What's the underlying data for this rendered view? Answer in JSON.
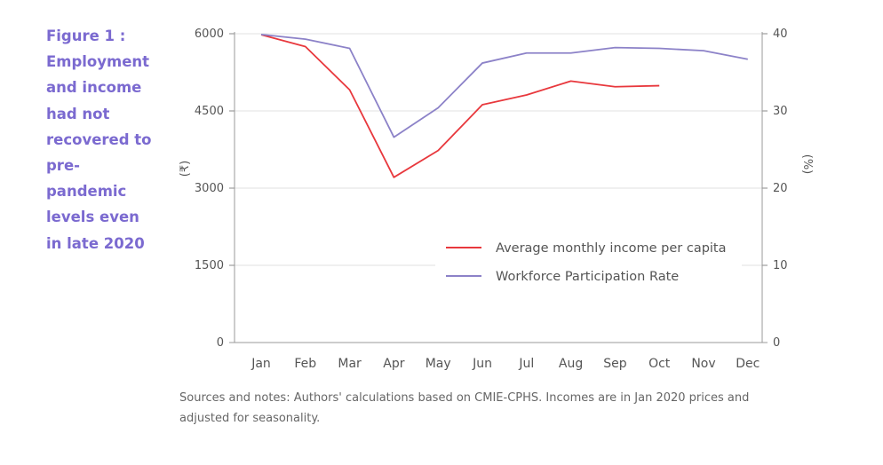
{
  "caption_lines": [
    "Figure 1 :",
    "Employment",
    "and income",
    "had not",
    "recovered to",
    "pre-",
    "pandemic",
    "levels even",
    "in late 2020"
  ],
  "notes": "Sources and notes: Authors' calculations based on CMIE-CPHS. Incomes are in Jan 2020 prices and adjusted for seasonality.",
  "chart_data": {
    "type": "line",
    "categories": [
      "Jan",
      "Feb",
      "Mar",
      "Apr",
      "May",
      "Jun",
      "Jul",
      "Aug",
      "Sep",
      "Oct",
      "Nov",
      "Dec"
    ],
    "ylabel_left": "(₹)",
    "ylabel_right": "(%)",
    "ylim_left": [
      0,
      6000
    ],
    "yticks_left": [
      "0",
      "1500",
      "3000",
      "4500",
      "6000"
    ],
    "ylim_right": [
      0,
      40
    ],
    "yticks_right": [
      "0",
      "10",
      "20",
      "30",
      "40"
    ],
    "grid": true,
    "legend_position": "center-right",
    "series": [
      {
        "name": "Average monthly income per capita",
        "axis": "left",
        "color": "#e8383d",
        "values": [
          5980,
          5750,
          4910,
          3210,
          3730,
          4620,
          4810,
          5080,
          4970,
          4990,
          null,
          null
        ]
      },
      {
        "name": "Workforce Participation Rate",
        "axis": "right",
        "color": "#8c82c8",
        "values": [
          39.9,
          39.3,
          38.1,
          26.6,
          30.4,
          36.2,
          37.5,
          37.5,
          38.2,
          38.1,
          37.8,
          36.7
        ]
      }
    ]
  }
}
